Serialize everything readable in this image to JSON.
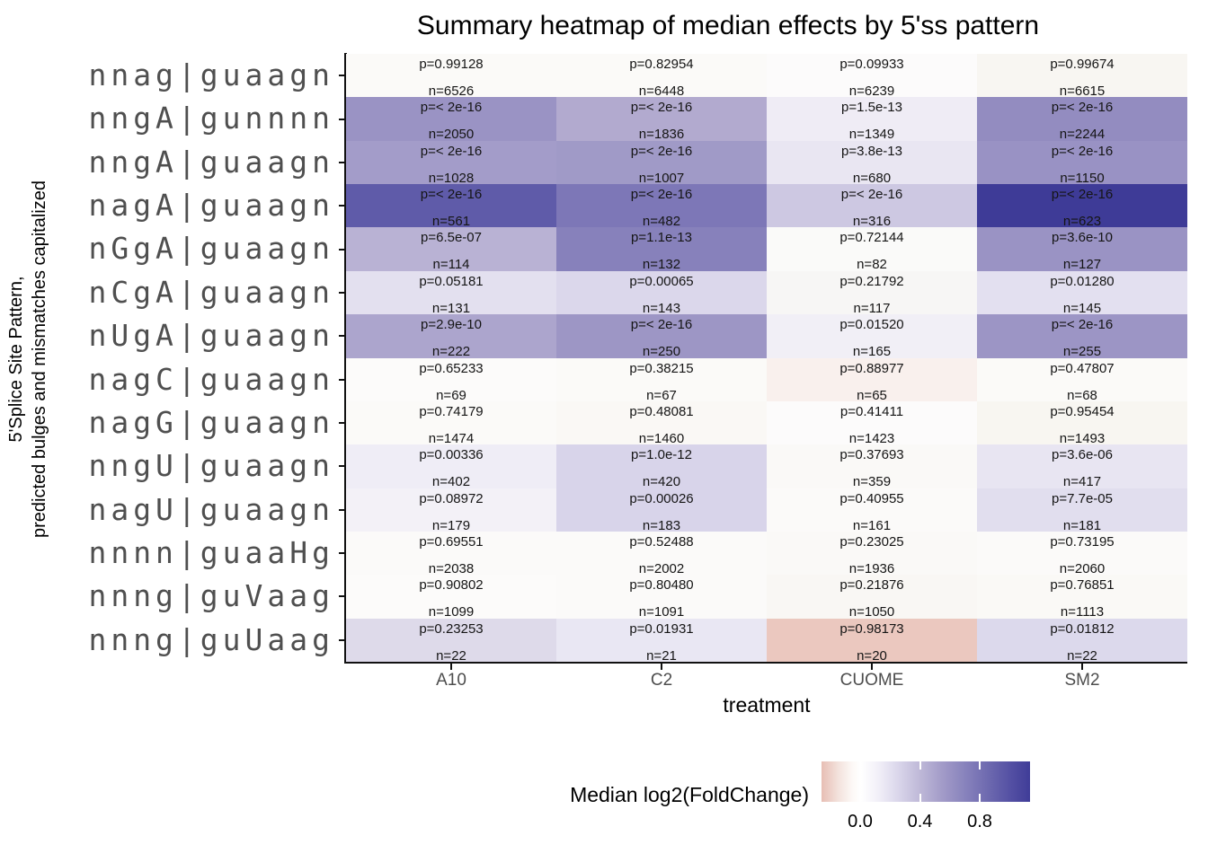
{
  "chart_data": {
    "type": "heatmap",
    "title": "Summary heatmap of median effects by 5'ss pattern",
    "xlabel": "treatment",
    "ylabel_lines": [
      "5'Splice Site Pattern,",
      "predicted bulges and mismatches capitalized"
    ],
    "x_categories": [
      "A10",
      "C2",
      "CUOME",
      "SM2"
    ],
    "legend": {
      "title": "Median log2(FoldChange)",
      "tick_labels": [
        "0.0",
        "0.4",
        "0.8"
      ],
      "tick_values": [
        0.0,
        0.4,
        0.8
      ],
      "range": [
        -0.26,
        1.14
      ],
      "low_color": "#E7BEB4",
      "mid_color": "#FFFFFF",
      "high_color": "#3E3B97"
    },
    "rows": [
      {
        "pattern": "nnag|guaagn",
        "cells": [
          {
            "p": "p=0.99128",
            "n": "n=6526",
            "lfc": 0.0,
            "color": "#FBFAF8"
          },
          {
            "p": "p=0.82954",
            "n": "n=6448",
            "lfc": 0.0,
            "color": "#FBFAF8"
          },
          {
            "p": "p=0.09933",
            "n": "n=6239",
            "lfc": 0.0,
            "color": "#FCFBFB"
          },
          {
            "p": "p=0.99674",
            "n": "n=6615",
            "lfc": 0.0,
            "color": "#F8F6F2"
          }
        ]
      },
      {
        "pattern": "nngA|gunnnn",
        "cells": [
          {
            "p": "p=< 2e-16",
            "n": "n=2050",
            "lfc": 0.45,
            "color": "#9A93C4"
          },
          {
            "p": "p=< 2e-16",
            "n": "n=1836",
            "lfc": 0.35,
            "color": "#B2AACF"
          },
          {
            "p": "p=1.5e-13",
            "n": "n=1349",
            "lfc": 0.08,
            "color": "#EFECF5"
          },
          {
            "p": "p=< 2e-16",
            "n": "n=2244",
            "lfc": 0.48,
            "color": "#938CC0"
          }
        ]
      },
      {
        "pattern": "nngA|guaagn",
        "cells": [
          {
            "p": "p=< 2e-16",
            "n": "n=1028",
            "lfc": 0.42,
            "color": "#A39CC9"
          },
          {
            "p": "p=< 2e-16",
            "n": "n=1007",
            "lfc": 0.43,
            "color": "#A09AC7"
          },
          {
            "p": "p=3.8e-13",
            "n": "n=680",
            "lfc": 0.12,
            "color": "#E9E6F2"
          },
          {
            "p": "p=< 2e-16",
            "n": "n=1150",
            "lfc": 0.46,
            "color": "#9992C4"
          }
        ]
      },
      {
        "pattern": "nagA|guaagn",
        "cells": [
          {
            "p": "p=< 2e-16",
            "n": "n=561",
            "lfc": 0.75,
            "color": "#5F5BA9"
          },
          {
            "p": "p=< 2e-16",
            "n": "n=482",
            "lfc": 0.58,
            "color": "#7D77B7"
          },
          {
            "p": "p=< 2e-16",
            "n": "n=316",
            "lfc": 0.25,
            "color": "#CDC8E2"
          },
          {
            "p": "p=< 2e-16",
            "n": "n=623",
            "lfc": 1.0,
            "color": "#3E3B97"
          }
        ]
      },
      {
        "pattern": "nGgA|guaagn",
        "cells": [
          {
            "p": "p=6.5e-07",
            "n": "n=114",
            "lfc": 0.33,
            "color": "#B9B2D4"
          },
          {
            "p": "p=1.1e-13",
            "n": "n=132",
            "lfc": 0.53,
            "color": "#8781BB"
          },
          {
            "p": "p=0.72144",
            "n": "n=82",
            "lfc": 0.0,
            "color": "#FAFAF9"
          },
          {
            "p": "p=3.6e-10",
            "n": "n=127",
            "lfc": 0.45,
            "color": "#9A93C4"
          }
        ]
      },
      {
        "pattern": "nCgA|guaagn",
        "cells": [
          {
            "p": "p=0.05181",
            "n": "n=131",
            "lfc": 0.15,
            "color": "#E3E0EF"
          },
          {
            "p": "p=0.00065",
            "n": "n=143",
            "lfc": 0.18,
            "color": "#DBD7EB"
          },
          {
            "p": "p=0.21792",
            "n": "n=117",
            "lfc": 0.03,
            "color": "#F7F6F5"
          },
          {
            "p": "p=0.01280",
            "n": "n=145",
            "lfc": 0.15,
            "color": "#E3E0F0"
          }
        ]
      },
      {
        "pattern": "nUgA|guaagn",
        "cells": [
          {
            "p": "p=2.9e-10",
            "n": "n=222",
            "lfc": 0.38,
            "color": "#ACA5CD"
          },
          {
            "p": "p=< 2e-16",
            "n": "n=250",
            "lfc": 0.44,
            "color": "#9D96C5"
          },
          {
            "p": "p=0.01520",
            "n": "n=165",
            "lfc": 0.07,
            "color": "#F1EFF6"
          },
          {
            "p": "p=< 2e-16",
            "n": "n=255",
            "lfc": 0.44,
            "color": "#9C95C5"
          }
        ]
      },
      {
        "pattern": "nagC|guaagn",
        "cells": [
          {
            "p": "p=0.65233",
            "n": "n=69",
            "lfc": 0.0,
            "color": "#FCFBFA"
          },
          {
            "p": "p=0.38215",
            "n": "n=67",
            "lfc": 0.0,
            "color": "#FBFAF8"
          },
          {
            "p": "p=0.88977",
            "n": "n=65",
            "lfc": -0.03,
            "color": "#F9F0ED"
          },
          {
            "p": "p=0.47807",
            "n": "n=68",
            "lfc": 0.0,
            "color": "#FBFAF8"
          }
        ]
      },
      {
        "pattern": "nagG|guaagn",
        "cells": [
          {
            "p": "p=0.74179",
            "n": "n=1474",
            "lfc": 0.0,
            "color": "#FBFAF8"
          },
          {
            "p": "p=0.48081",
            "n": "n=1460",
            "lfc": 0.0,
            "color": "#FAF8F5"
          },
          {
            "p": "p=0.41411",
            "n": "n=1423",
            "lfc": 0.0,
            "color": "#FCFBFB"
          },
          {
            "p": "p=0.95454",
            "n": "n=1493",
            "lfc": 0.0,
            "color": "#F8F6F1"
          }
        ]
      },
      {
        "pattern": "nngU|guaagn",
        "cells": [
          {
            "p": "p=0.00336",
            "n": "n=402",
            "lfc": 0.08,
            "color": "#EFEDF6"
          },
          {
            "p": "p=1.0e-12",
            "n": "n=420",
            "lfc": 0.2,
            "color": "#D8D4EA"
          },
          {
            "p": "p=0.37693",
            "n": "n=359",
            "lfc": 0.01,
            "color": "#FAF9F7"
          },
          {
            "p": "p=3.6e-06",
            "n": "n=417",
            "lfc": 0.12,
            "color": "#E8E5F2"
          }
        ]
      },
      {
        "pattern": "nagU|guaagn",
        "cells": [
          {
            "p": "p=0.08972",
            "n": "n=179",
            "lfc": 0.06,
            "color": "#F3F1F7"
          },
          {
            "p": "p=0.00026",
            "n": "n=183",
            "lfc": 0.2,
            "color": "#D8D4EA"
          },
          {
            "p": "p=0.40955",
            "n": "n=161",
            "lfc": 0.01,
            "color": "#FBFAF9"
          },
          {
            "p": "p=7.7e-05",
            "n": "n=181",
            "lfc": 0.16,
            "color": "#E1DEEE"
          }
        ]
      },
      {
        "pattern": "nnnn|guaaHg",
        "cells": [
          {
            "p": "p=0.69551",
            "n": "n=2038",
            "lfc": 0.0,
            "color": "#FBFAF9"
          },
          {
            "p": "p=0.52488",
            "n": "n=2002",
            "lfc": 0.0,
            "color": "#FBFAF9"
          },
          {
            "p": "p=0.23025",
            "n": "n=1936",
            "lfc": 0.01,
            "color": "#FAF9F7"
          },
          {
            "p": "p=0.73195",
            "n": "n=2060",
            "lfc": 0.0,
            "color": "#FBFAF9"
          }
        ]
      },
      {
        "pattern": "nnng|guVaag",
        "cells": [
          {
            "p": "p=0.90802",
            "n": "n=1099",
            "lfc": 0.0,
            "color": "#FCFBFA"
          },
          {
            "p": "p=0.80480",
            "n": "n=1091",
            "lfc": 0.0,
            "color": "#FBFAF9"
          },
          {
            "p": "p=0.21876",
            "n": "n=1050",
            "lfc": 0.01,
            "color": "#F9F7F4"
          },
          {
            "p": "p=0.76851",
            "n": "n=1113",
            "lfc": 0.0,
            "color": "#FAF9F6"
          }
        ]
      },
      {
        "pattern": "nnng|guUaag",
        "cells": [
          {
            "p": "p=0.23253",
            "n": "n=22",
            "lfc": 0.17,
            "color": "#DEDAEA"
          },
          {
            "p": "p=0.01931",
            "n": "n=21",
            "lfc": 0.1,
            "color": "#E9E7F3"
          },
          {
            "p": "p=0.98173",
            "n": "n=20",
            "lfc": -0.15,
            "color": "#EBC8BF"
          },
          {
            "p": "p=0.01812",
            "n": "n=22",
            "lfc": 0.17,
            "color": "#DCD9EC"
          }
        ]
      }
    ]
  }
}
